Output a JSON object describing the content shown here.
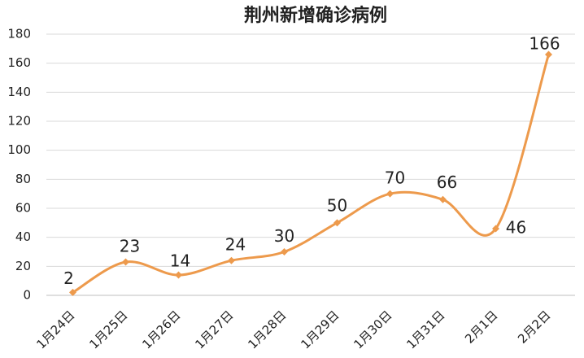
{
  "chart_data": {
    "type": "line",
    "title": "荆州新增确诊病例",
    "categories": [
      "1月24日",
      "1月25日",
      "1月26日",
      "1月27日",
      "1月28日",
      "1月29日",
      "1月30日",
      "1月31日",
      "2月1日",
      "2月2日"
    ],
    "values": [
      2,
      23,
      14,
      24,
      30,
      50,
      70,
      66,
      46,
      166
    ],
    "color": "#ed9a4c",
    "smooth": true,
    "ylim": [
      0,
      180
    ],
    "yticks": [
      0,
      20,
      40,
      60,
      80,
      100,
      120,
      140,
      160,
      180
    ],
    "grid": true
  }
}
